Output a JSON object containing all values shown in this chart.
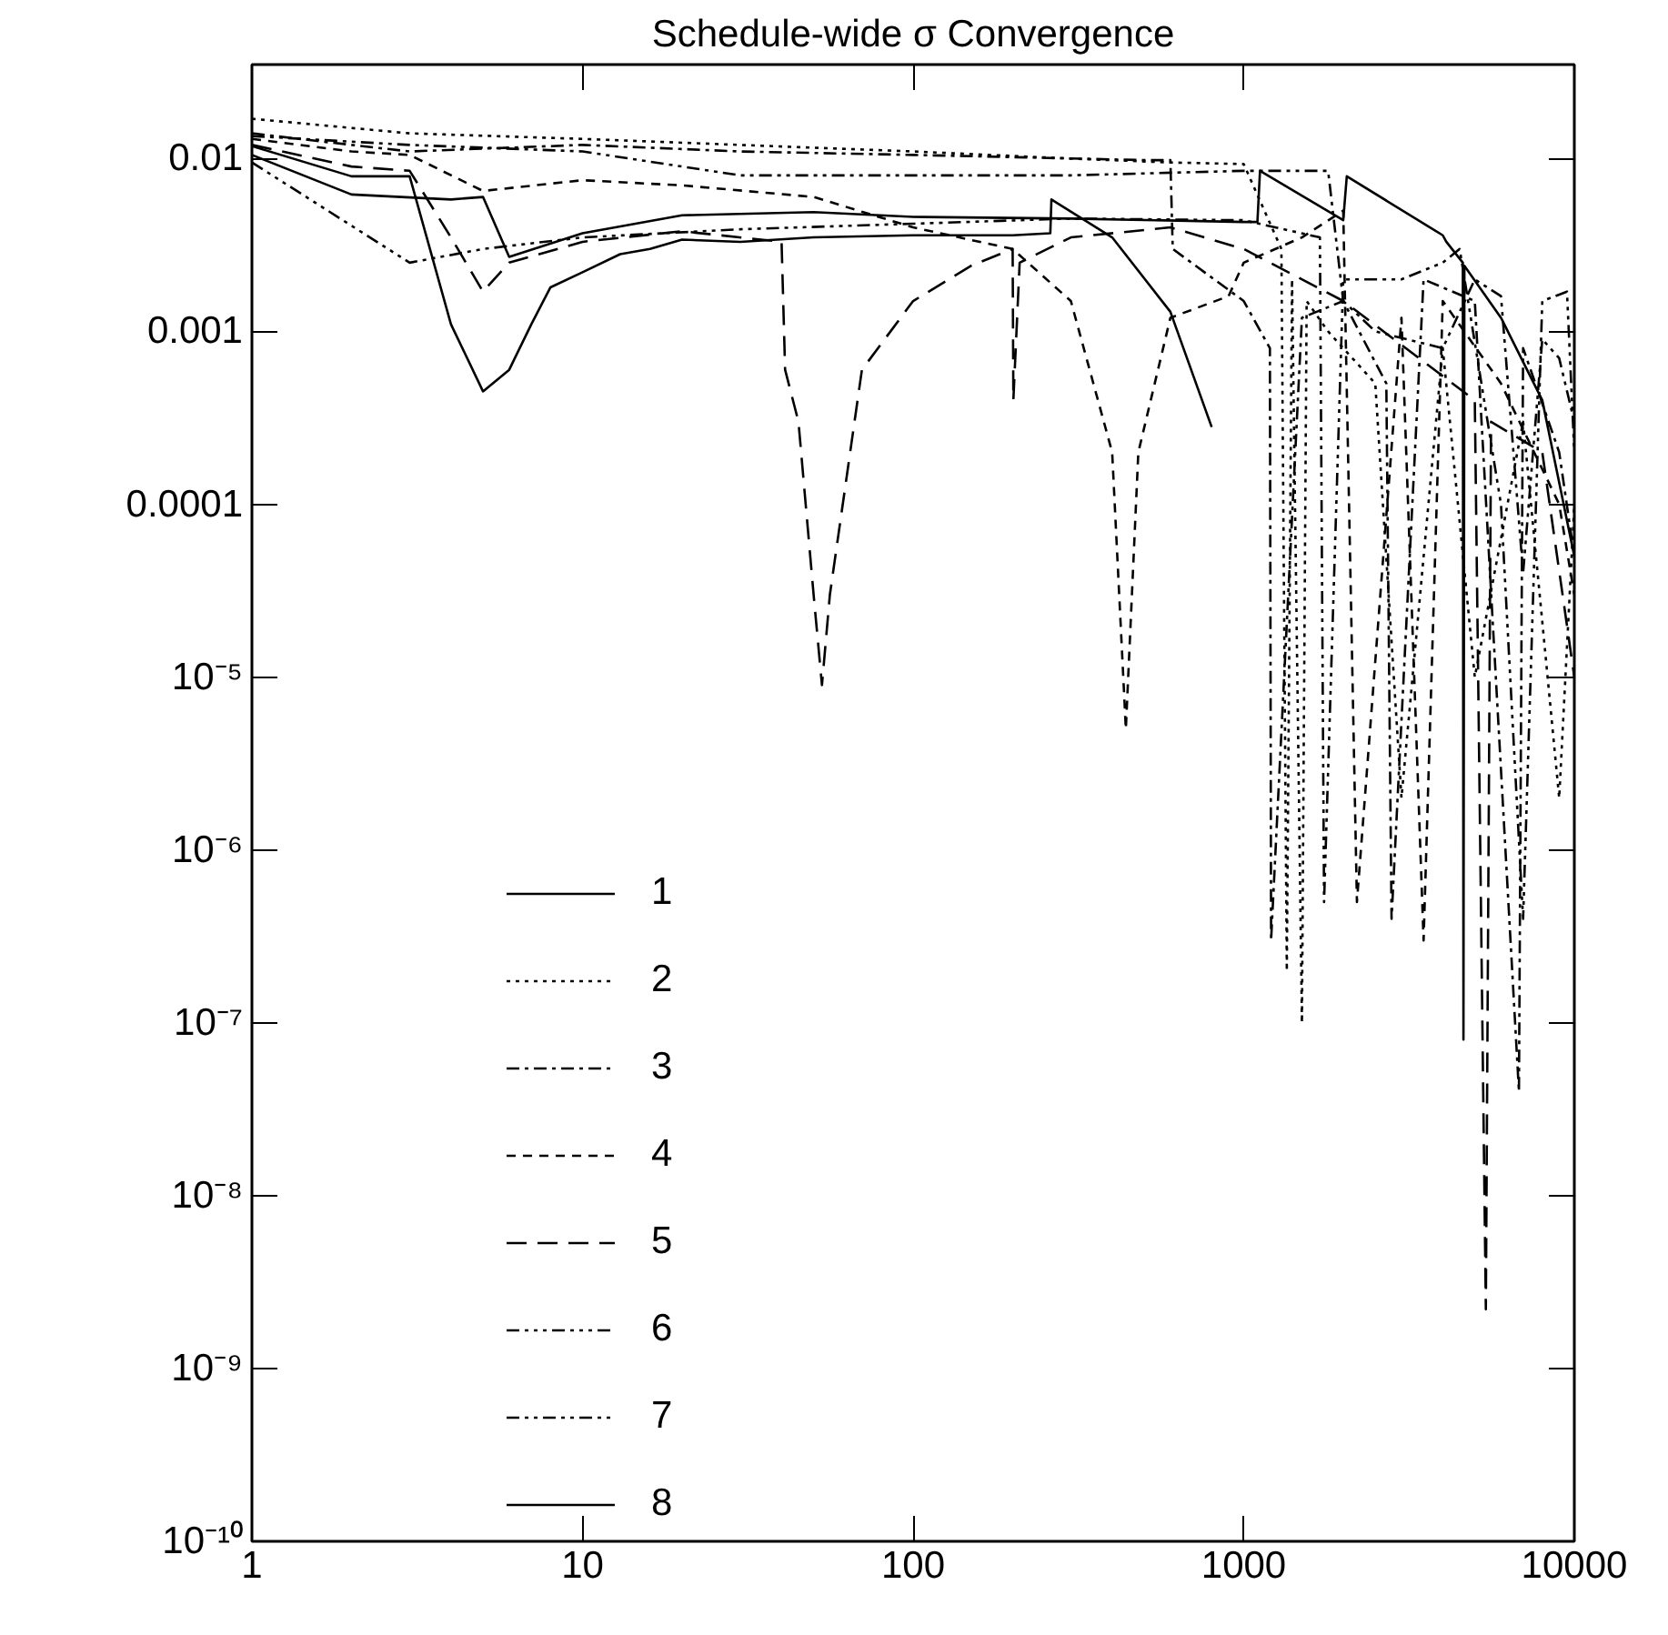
{
  "chart_data": {
    "type": "line",
    "title": "Schedule-wide σ Convergence",
    "log": "xy",
    "grid": false,
    "legend": "bottom left",
    "xlim": [
      1,
      10000
    ],
    "xticks": [
      1,
      10,
      100,
      1000,
      10000
    ],
    "ylim": [
      1e-10,
      0.035
    ],
    "yticks": [
      {
        "value": 1e-10,
        "label": "10⁻¹⁰"
      },
      {
        "value": 1e-09,
        "label": "10⁻⁹"
      },
      {
        "value": 1e-08,
        "label": "10⁻⁸"
      },
      {
        "value": 1e-07,
        "label": "10⁻⁷"
      },
      {
        "value": 1e-06,
        "label": "10⁻⁶"
      },
      {
        "value": 1e-05,
        "label": "10⁻⁵"
      },
      0.0001,
      0.001,
      0.01
    ],
    "series": [
      {
        "name": "1",
        "color": "#000000",
        "line_style": "solid",
        "x": [
          1,
          2,
          3,
          4,
          5,
          6,
          7,
          8,
          10,
          13,
          16,
          20,
          30,
          50,
          100,
          200,
          260,
          262,
          400,
          600,
          800
        ],
        "values": [
          0.0118,
          0.0079,
          0.0079,
          0.0011,
          0.00045,
          0.0006,
          0.0011,
          0.0018,
          0.0022,
          0.0028,
          0.003,
          0.0034,
          0.0033,
          0.0035,
          0.0036,
          0.0036,
          0.0037,
          0.0058,
          0.0035,
          0.0013,
          0.00028
        ]
      },
      {
        "name": "2",
        "color": "#000000",
        "line_style": "dotted",
        "x": [
          1,
          3,
          10,
          30,
          100,
          300,
          600,
          1000,
          1300,
          1350,
          1400,
          1500,
          1550,
          1800,
          2500,
          3000,
          4000,
          5000,
          7000,
          9000,
          10000
        ],
        "values": [
          0.017,
          0.014,
          0.013,
          0.012,
          0.011,
          0.01,
          0.0095,
          0.0093,
          0.003,
          2e-07,
          0.002,
          1e-07,
          0.0015,
          0.001,
          0.0005,
          2e-06,
          0.0008,
          1e-05,
          0.0003,
          2e-06,
          0.0001
        ]
      },
      {
        "name": "3",
        "color": "#000000",
        "line_style": "dashdot",
        "x": [
          1,
          2,
          3,
          10,
          30,
          100,
          200,
          500,
          600,
          610,
          1000,
          1200,
          1210,
          1500,
          2000,
          2700,
          2800,
          3500,
          5000,
          6800,
          7000,
          9000,
          10000
        ],
        "values": [
          0.014,
          0.012,
          0.011,
          0.012,
          0.011,
          0.0105,
          0.0102,
          0.0098,
          0.0098,
          0.003,
          0.0015,
          0.0008,
          3e-07,
          0.0012,
          0.0015,
          0.0005,
          4e-07,
          0.002,
          0.0015,
          4e-08,
          0.0008,
          0.0002,
          5e-05
        ]
      },
      {
        "name": "4",
        "color": "#000000",
        "line_style": "dashed",
        "x": [
          1,
          2,
          3,
          5,
          10,
          20,
          50,
          100,
          200,
          300,
          400,
          440,
          480,
          600,
          900,
          1000,
          1500,
          2000,
          2200,
          3000,
          3500,
          4000,
          6000,
          9000,
          10000
        ],
        "values": [
          0.013,
          0.011,
          0.0105,
          0.0065,
          0.0075,
          0.007,
          0.006,
          0.004,
          0.003,
          0.0015,
          0.0002,
          5e-06,
          0.0002,
          0.0012,
          0.0016,
          0.0025,
          0.0035,
          0.005,
          5e-07,
          0.0012,
          3e-07,
          0.0015,
          0.0005,
          0.0001,
          3e-05
        ]
      },
      {
        "name": "5",
        "color": "#000000",
        "line_style": "longdash",
        "x": [
          1,
          2,
          3,
          4,
          5,
          6,
          10,
          20,
          40,
          41,
          45,
          50,
          53,
          56,
          70,
          100,
          150,
          200,
          201,
          210,
          300,
          600,
          1000,
          2000,
          5000,
          5400,
          5600,
          8000,
          10000
        ],
        "values": [
          0.012,
          0.009,
          0.0085,
          0.0035,
          0.0017,
          0.0025,
          0.0033,
          0.0038,
          0.0033,
          0.0006,
          0.0003,
          3e-05,
          9e-06,
          3e-05,
          0.0006,
          0.0015,
          0.0024,
          0.003,
          0.0004,
          0.0025,
          0.0035,
          0.004,
          0.003,
          0.0015,
          0.0004,
          2.2e-09,
          0.0003,
          0.0002,
          1e-05
        ]
      },
      {
        "name": "6",
        "color": "#000000",
        "line_style": "dashdotdotdot",
        "x": [
          1,
          3,
          5,
          10,
          30,
          100,
          300,
          1000,
          1700,
          1750,
          2000,
          3000,
          4000,
          4500,
          6000,
          7000,
          8000,
          9500,
          10000
        ],
        "values": [
          0.0095,
          0.0025,
          0.003,
          0.0035,
          0.0039,
          0.0042,
          0.0045,
          0.0044,
          0.0035,
          5e-07,
          0.002,
          0.002,
          0.0025,
          0.003,
          0.0001,
          4e-07,
          0.0015,
          0.0017,
          0.0002
        ]
      },
      {
        "name": "7",
        "color": "#000000",
        "line_style": "dashdotdot",
        "x": [
          1,
          3,
          10,
          30,
          100,
          300,
          1000,
          1800,
          2000,
          2500,
          4000,
          5000,
          6000,
          7000,
          8000,
          9000,
          10000
        ],
        "values": [
          0.0135,
          0.012,
          0.011,
          0.008,
          0.008,
          0.008,
          0.0085,
          0.0085,
          0.0015,
          0.001,
          0.0008,
          0.002,
          0.0016,
          4e-05,
          0.0009,
          0.0007,
          0.0003
        ]
      },
      {
        "name": "8",
        "color": "#000000",
        "line_style": "solid",
        "x": [
          1,
          2,
          4,
          5,
          6,
          10,
          20,
          50,
          100,
          300,
          1000,
          1100,
          1120,
          2000,
          2050,
          4000,
          4100,
          4600,
          4620,
          4650,
          6000,
          8000,
          10000
        ],
        "values": [
          0.0105,
          0.0062,
          0.0058,
          0.006,
          0.0027,
          0.0037,
          0.0047,
          0.0049,
          0.0046,
          0.0045,
          0.0043,
          0.0043,
          0.0085,
          0.0044,
          0.0079,
          0.0036,
          0.0033,
          0.0025,
          8e-08,
          0.0024,
          0.0012,
          0.0004,
          5e-05
        ]
      }
    ]
  }
}
